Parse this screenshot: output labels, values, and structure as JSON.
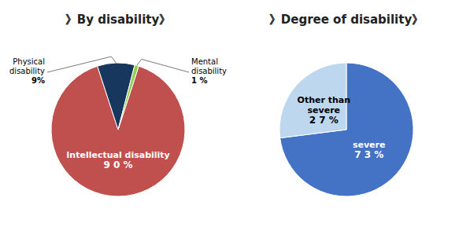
{
  "chart_data": [
    {
      "type": "pie",
      "title": "》By disability》",
      "categories": [
        "Intellectual disability",
        "Physical\ndisability",
        "Mental\ndisability"
      ],
      "values": [
        90,
        9,
        1
      ],
      "value_labels": [
        "9 0 %",
        "9%",
        "1 %"
      ],
      "colors": [
        "#C0504D",
        "#17375E",
        "#92D050"
      ],
      "data_labels": true
    },
    {
      "type": "pie",
      "title": "》Degree of disability》",
      "categories": [
        "severe",
        "Other than\nsevere"
      ],
      "values": [
        73,
        27
      ],
      "value_labels": [
        "7 3 %",
        "2 7 %"
      ],
      "colors": [
        "#4472C4",
        "#BDD7EE"
      ],
      "data_labels": true
    }
  ]
}
